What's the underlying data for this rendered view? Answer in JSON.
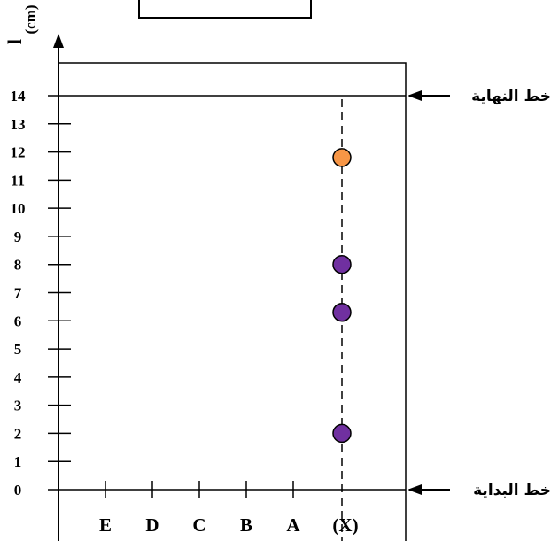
{
  "y_axis_label": {
    "symbol": "l",
    "unit": "(cm)"
  },
  "y_ticks": [
    "0",
    "1",
    "2",
    "3",
    "4",
    "5",
    "6",
    "7",
    "8",
    "9",
    "10",
    "11",
    "12",
    "13",
    "14"
  ],
  "lanes": [
    "E",
    "D",
    "C",
    "B",
    "A",
    "(X)"
  ],
  "finish_line_label": "خط النهاية",
  "start_line_label": "خط البداية",
  "spots": [
    {
      "lane": "(X)",
      "y": 2,
      "color": "#7030a0"
    },
    {
      "lane": "(X)",
      "y": 6.3,
      "color": "#7030a0"
    },
    {
      "lane": "(X)",
      "y": 8,
      "color": "#7030a0"
    },
    {
      "lane": "(X)",
      "y": 11.8,
      "color": "#f79646"
    }
  ],
  "colors": {
    "line": "#000000",
    "purple": "#7030a0",
    "orange": "#f79646"
  }
}
